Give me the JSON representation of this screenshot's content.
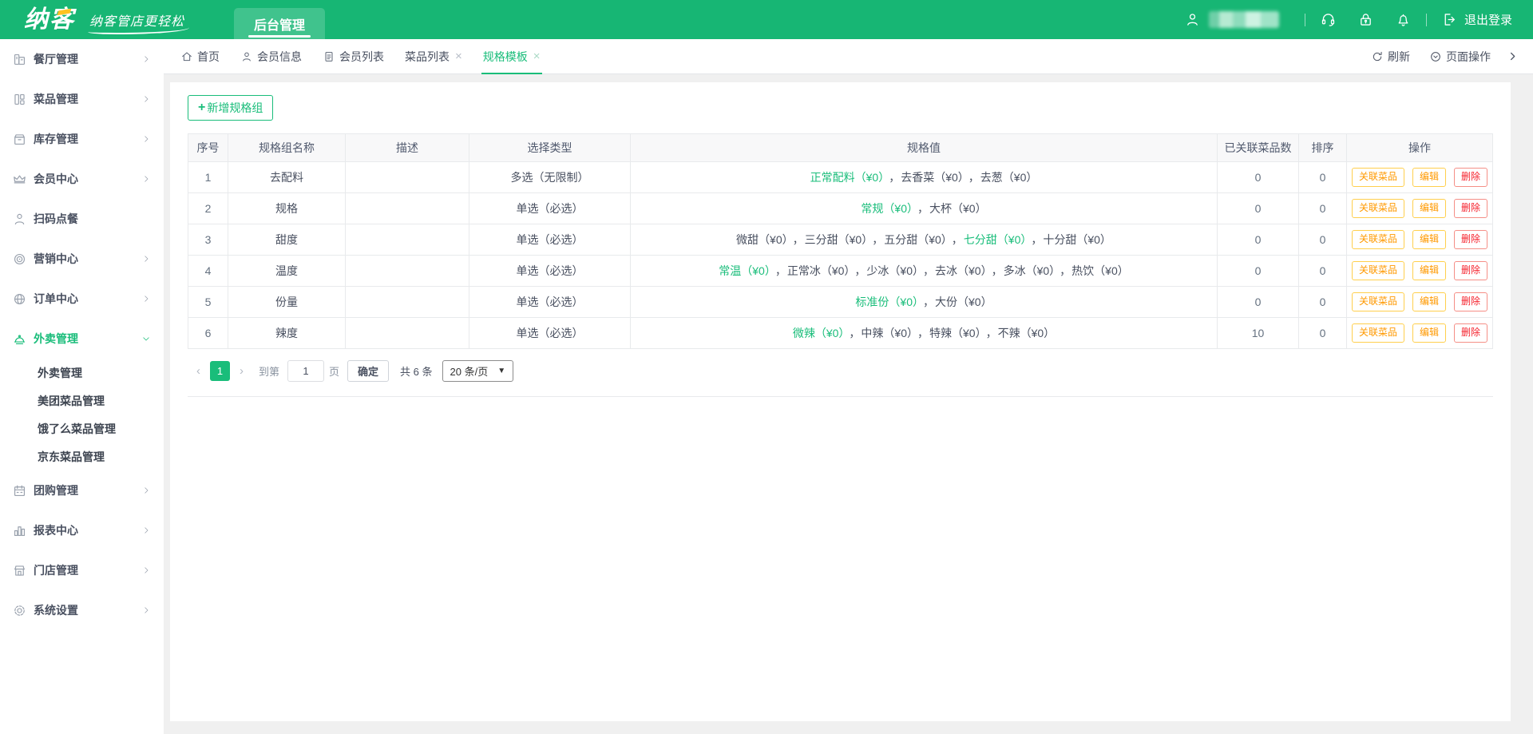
{
  "header": {
    "logo": "纳客",
    "tagline": "纳客管店更轻松",
    "nav_tab": "后台管理",
    "logout_label": "退出登录"
  },
  "tabbar": {
    "tabs": [
      {
        "key": "home",
        "label": "首页",
        "icon": "home",
        "closable": false,
        "active": false
      },
      {
        "key": "member-info",
        "label": "会员信息",
        "icon": "user",
        "closable": false,
        "active": false
      },
      {
        "key": "member-list",
        "label": "会员列表",
        "icon": "document",
        "closable": false,
        "active": false
      },
      {
        "key": "dish-list",
        "label": "菜品列表",
        "icon": null,
        "closable": true,
        "active": false
      },
      {
        "key": "spec-template",
        "label": "规格模板",
        "icon": null,
        "closable": true,
        "active": true
      }
    ],
    "refresh_label": "刷新",
    "page_ops_label": "页面操作"
  },
  "sidebar": {
    "items": [
      {
        "key": "restaurant",
        "label": "餐厅管理",
        "icon": "restaurant",
        "chevron": "right"
      },
      {
        "key": "dishes",
        "label": "菜品管理",
        "icon": "dishes",
        "chevron": "right"
      },
      {
        "key": "inventory",
        "label": "库存管理",
        "icon": "inventory",
        "chevron": "right"
      },
      {
        "key": "member-center",
        "label": "会员中心",
        "icon": "member",
        "chevron": "right"
      },
      {
        "key": "scan-order",
        "label": "扫码点餐",
        "icon": "scan",
        "chevron": null
      },
      {
        "key": "marketing",
        "label": "营销中心",
        "icon": "marketing",
        "chevron": "right"
      },
      {
        "key": "order-center",
        "label": "订单中心",
        "icon": "orders",
        "chevron": "right"
      },
      {
        "key": "takeout",
        "label": "外卖管理",
        "icon": "takeout",
        "chevron": "down",
        "active": true,
        "children": [
          {
            "key": "takeout-manage",
            "label": "外卖管理"
          },
          {
            "key": "meituan-dishes",
            "label": "美团菜品管理"
          },
          {
            "key": "eleme-dishes",
            "label": "饿了么菜品管理"
          },
          {
            "key": "jd-dishes",
            "label": "京东菜品管理"
          }
        ]
      },
      {
        "key": "groupbuy",
        "label": "团购管理",
        "icon": "groupbuy",
        "chevron": "right"
      },
      {
        "key": "report",
        "label": "报表中心",
        "icon": "report",
        "chevron": "right"
      },
      {
        "key": "store",
        "label": "门店管理",
        "icon": "store",
        "chevron": "right"
      },
      {
        "key": "settings",
        "label": "系统设置",
        "icon": "settings",
        "chevron": "right"
      }
    ]
  },
  "toolbar": {
    "plus": "+",
    "add_button": "新增规格组"
  },
  "table": {
    "headers": [
      "序号",
      "规格组名称",
      "描述",
      "选择类型",
      "规格值",
      "已关联菜品数",
      "排序",
      "操作"
    ],
    "action_labels": [
      "关联菜品",
      "编辑",
      "删除"
    ],
    "separator": "，",
    "rows": [
      {
        "no": "1",
        "name": "去配料",
        "desc": "",
        "type": "多选（无限制）",
        "values": [
          {
            "text": "正常配料（¥0）",
            "highlight": true
          },
          {
            "text": "去香菜（¥0）",
            "highlight": false
          },
          {
            "text": "去葱（¥0）",
            "highlight": false
          }
        ],
        "linked": "0",
        "sort": "0"
      },
      {
        "no": "2",
        "name": "规格",
        "desc": "",
        "type": "单选（必选）",
        "values": [
          {
            "text": "常规（¥0）",
            "highlight": true
          },
          {
            "text": "大杯（¥0）",
            "highlight": false
          }
        ],
        "linked": "0",
        "sort": "0"
      },
      {
        "no": "3",
        "name": "甜度",
        "desc": "",
        "type": "单选（必选）",
        "values": [
          {
            "text": "微甜（¥0）",
            "highlight": false
          },
          {
            "text": "三分甜（¥0）",
            "highlight": false
          },
          {
            "text": "五分甜（¥0）",
            "highlight": false
          },
          {
            "text": "七分甜（¥0）",
            "highlight": true
          },
          {
            "text": "十分甜（¥0）",
            "highlight": false
          }
        ],
        "linked": "0",
        "sort": "0"
      },
      {
        "no": "4",
        "name": "温度",
        "desc": "",
        "type": "单选（必选）",
        "values": [
          {
            "text": "常温（¥0）",
            "highlight": true
          },
          {
            "text": "正常冰（¥0）",
            "highlight": false
          },
          {
            "text": "少冰（¥0）",
            "highlight": false
          },
          {
            "text": "去冰（¥0）",
            "highlight": false
          },
          {
            "text": "多冰（¥0）",
            "highlight": false
          },
          {
            "text": "热饮（¥0）",
            "highlight": false
          }
        ],
        "linked": "0",
        "sort": "0"
      },
      {
        "no": "5",
        "name": "份量",
        "desc": "",
        "type": "单选（必选）",
        "values": [
          {
            "text": "标准份（¥0）",
            "highlight": true
          },
          {
            "text": "大份（¥0）",
            "highlight": false
          }
        ],
        "linked": "0",
        "sort": "0"
      },
      {
        "no": "6",
        "name": "辣度",
        "desc": "",
        "type": "单选（必选）",
        "values": [
          {
            "text": "微辣（¥0）",
            "highlight": true
          },
          {
            "text": "中辣（¥0）",
            "highlight": false
          },
          {
            "text": "特辣（¥0）",
            "highlight": false
          },
          {
            "text": "不辣（¥0）",
            "highlight": false
          }
        ],
        "linked": "10",
        "sort": "0"
      }
    ]
  },
  "pagination": {
    "prev": "‹",
    "page": "1",
    "next": "›",
    "goto_label": "到第",
    "goto_value": "1",
    "page_unit": "页",
    "confirm_label": "确定",
    "total_label": "共 6 条",
    "page_size": "20 条/页"
  },
  "colors": {
    "header_green": "#17b674",
    "accent_green": "#19bd7a",
    "warning": "#ff9900",
    "danger": "#f5222d",
    "body_bg": "#f0f0f0",
    "table_header_bg": "#f8f8f9",
    "border": "#e8eaec"
  }
}
